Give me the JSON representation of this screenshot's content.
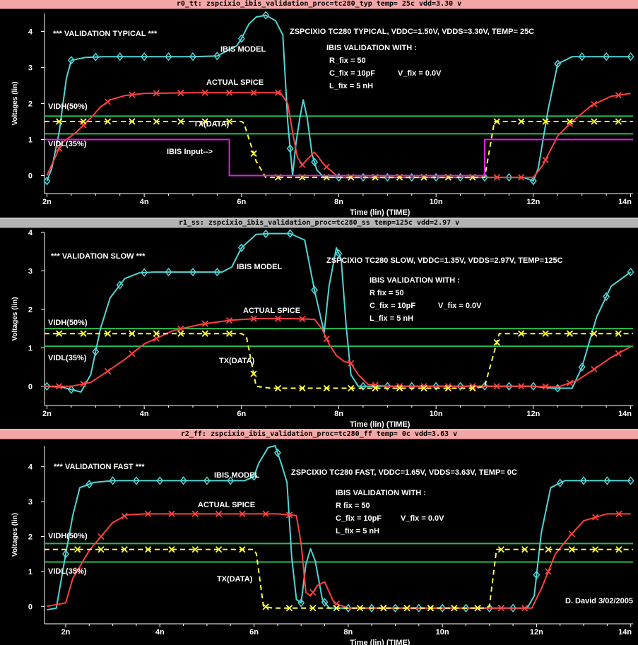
{
  "signature": "D. David 3/02/2005",
  "colors": {
    "bg": "#000000",
    "ibis": "#4fd6d6",
    "spice": "#ff4040",
    "txdata": "#ffff40",
    "thresh": "#22c055",
    "input": "#e020e0",
    "axis": "#ffffff",
    "title_a": "#f4a6a6",
    "title_b": "#b4b4b4"
  },
  "chart_data": [
    {
      "type": "line",
      "panel_title": "r0_tt: zspcixio_ibis_validation_proc=tc280_typ temp= 25c  vdd=3.30  v",
      "ylabel": "Voltages (lin)",
      "xlabel": "Time (lin) (TIME)",
      "xlim": [
        1.95,
        14.05
      ],
      "ylim": [
        -0.5,
        4.5
      ],
      "xticks": [
        2,
        4,
        6,
        8,
        10,
        12,
        14
      ],
      "xtick_labels": [
        "2n",
        "4n",
        "6n",
        "8n",
        "10n",
        "12n",
        "14n"
      ],
      "yticks": [
        0,
        1,
        2,
        3,
        4
      ],
      "ytick_labels": [
        "0",
        "1",
        "2",
        "3",
        "4"
      ],
      "annotations": {
        "validation": "*** VALIDATION TYPICAL ***",
        "corner": "ZSPCIXIO TC280 TYPICAL, VDDC=1.50V, VDDS=3.30V, TEMP= 25C",
        "ibis_header": "IBIS VALIDATION WITH :",
        "r_fix": "R_fix = 50",
        "c_fix": "C_fix = 10pF",
        "v_fix": "V_fix = 0.0V",
        "l_fix": "L_fix = 5 nH",
        "ibis_model": "IBIS MODEL",
        "actual_spice": "ACTUAL SPICE",
        "tx_data": "TX(DATA)",
        "vidh": "VIDH(50%)",
        "vidl": "VIDL(35%)",
        "ibis_input": "IBIS Input-->"
      },
      "thresholds": {
        "vidh": 1.65,
        "vidl": 1.16
      },
      "series": [
        {
          "name": "IBIS MODEL",
          "x": [
            2.0,
            2.1,
            2.25,
            2.4,
            2.5,
            2.8,
            3.2,
            3.6,
            4.0,
            5.0,
            5.5,
            5.9,
            6.0,
            6.15,
            6.3,
            6.5,
            6.7,
            6.85,
            6.95,
            7.05,
            7.12,
            7.2,
            7.27,
            7.35,
            7.45,
            7.55,
            7.7,
            8.0,
            9.0,
            10.0,
            11.0,
            11.8,
            12.0,
            12.1,
            12.3,
            12.5,
            12.8,
            13.5,
            14.0
          ],
          "y": [
            -0.15,
            0.2,
            1.2,
            2.7,
            3.2,
            3.28,
            3.3,
            3.3,
            3.3,
            3.3,
            3.32,
            3.6,
            3.8,
            4.2,
            4.4,
            4.45,
            4.3,
            3.9,
            1.5,
            0.0,
            0.9,
            1.6,
            2.1,
            1.6,
            0.6,
            0.15,
            -0.05,
            -0.05,
            -0.05,
            -0.05,
            -0.05,
            -0.05,
            -0.15,
            0.2,
            1.8,
            3.1,
            3.3,
            3.3,
            3.3
          ]
        },
        {
          "name": "ACTUAL SPICE",
          "x": [
            2.0,
            2.3,
            2.6,
            2.9,
            3.1,
            3.3,
            3.6,
            4.0,
            5.0,
            6.0,
            6.8,
            6.95,
            7.05,
            7.15,
            7.25,
            7.35,
            7.5,
            7.7,
            8.0,
            9.0,
            10.0,
            11.0,
            12.0,
            12.2,
            12.5,
            12.8,
            13.2,
            13.6,
            14.0
          ],
          "y": [
            0.0,
            0.9,
            1.2,
            1.6,
            1.9,
            2.1,
            2.22,
            2.28,
            2.3,
            2.3,
            2.3,
            2.0,
            1.2,
            0.5,
            0.3,
            0.45,
            0.65,
            0.3,
            -0.05,
            -0.05,
            -0.05,
            -0.05,
            -0.05,
            0.3,
            1.1,
            1.5,
            1.95,
            2.2,
            2.28
          ]
        },
        {
          "name": "TX(DATA)",
          "x": [
            1.95,
            6.0,
            6.05,
            6.3,
            6.5,
            6.7,
            11.0,
            11.2,
            11.4,
            14.05
          ],
          "y": [
            1.5,
            1.5,
            1.45,
            0.4,
            -0.05,
            -0.05,
            -0.05,
            1.5,
            1.5,
            1.5
          ]
        },
        {
          "name": "IBIS Input",
          "x": [
            1.95,
            5.75,
            5.75,
            11.0,
            11.0,
            14.05
          ],
          "y": [
            1.0,
            1.0,
            0.0,
            0.0,
            1.0,
            1.0
          ]
        }
      ]
    },
    {
      "type": "line",
      "panel_title": "r1_ss: zspcixio_ibis_validation_proc=tc280_ss temp=125c  vdd=2.97  v",
      "ylabel": "Voltages (lin)",
      "xlabel": "Time (lin) (TIME)",
      "xlim": [
        1.95,
        14.05
      ],
      "ylim": [
        -0.5,
        4.0
      ],
      "xticks": [
        2,
        4,
        6,
        8,
        10,
        12,
        14
      ],
      "xtick_labels": [
        "2n",
        "4n",
        "6n",
        "8n",
        "10n",
        "12n",
        "14n"
      ],
      "yticks": [
        0,
        1,
        2,
        3,
        4
      ],
      "ytick_labels": [
        "0",
        "1",
        "2",
        "3",
        "4"
      ],
      "annotations": {
        "validation": "*** VALIDATION SLOW ***",
        "corner": "ZSPCIXIO TC280 SLOW, VDDC=1.35V, VDDS=2.97V, TEMP=125C",
        "ibis_header": "IBIS VALIDATION WITH :",
        "r_fix": "R  fix = 50",
        "c_fix": "C_fix = 10pF",
        "v_fix": "V_fix = 0.0V",
        "l_fix": "L_fix = 5 nH",
        "ibis_model": "IBIS MODEL",
        "actual_spice": "ACTUAL SPICE",
        "tx_data": "TX(DATA)",
        "vidh": "VIDH(50%)",
        "vidl": "VIDL(35%)"
      },
      "thresholds": {
        "vidh": 1.5,
        "vidl": 1.04
      },
      "series": [
        {
          "name": "IBIS MODEL",
          "x": [
            1.95,
            2.3,
            2.7,
            2.9,
            3.1,
            3.3,
            3.6,
            3.9,
            4.2,
            5.0,
            5.6,
            5.8,
            6.0,
            6.3,
            6.6,
            7.0,
            7.3,
            7.5,
            7.7,
            7.8,
            7.95,
            8.05,
            8.15,
            8.25,
            8.4,
            8.6,
            9.0,
            10.0,
            11.0,
            12.0,
            12.4,
            12.8,
            13.0,
            13.3,
            13.6,
            14.0
          ],
          "y": [
            0.0,
            -0.02,
            -0.15,
            0.3,
            1.5,
            2.3,
            2.8,
            2.95,
            2.97,
            2.97,
            2.97,
            3.1,
            3.6,
            3.95,
            3.97,
            3.97,
            3.8,
            2.5,
            1.4,
            2.6,
            3.6,
            3.3,
            1.6,
            0.3,
            0.0,
            0.0,
            0.0,
            0.0,
            0.0,
            0.0,
            -0.05,
            -0.05,
            0.5,
            1.8,
            2.6,
            2.97
          ]
        },
        {
          "name": "ACTUAL SPICE",
          "x": [
            1.95,
            2.5,
            2.9,
            3.2,
            3.6,
            4.0,
            4.6,
            5.2,
            5.8,
            6.3,
            7.0,
            7.5,
            7.65,
            7.8,
            7.95,
            8.1,
            8.25,
            8.4,
            8.6,
            9.0,
            10.0,
            11.0,
            12.0,
            12.5,
            12.9,
            13.2,
            13.6,
            14.0
          ],
          "y": [
            0.0,
            0.0,
            0.1,
            0.35,
            0.7,
            1.1,
            1.45,
            1.62,
            1.72,
            1.76,
            1.76,
            1.74,
            1.5,
            1.1,
            0.8,
            0.65,
            0.6,
            0.3,
            0.05,
            0.0,
            0.0,
            0.0,
            0.0,
            -0.02,
            0.15,
            0.4,
            0.75,
            1.03
          ]
        },
        {
          "name": "TX(DATA)",
          "x": [
            1.95,
            6.0,
            6.1,
            6.3,
            6.6,
            10.8,
            11.0,
            11.3,
            11.5,
            14.05
          ],
          "y": [
            1.37,
            1.37,
            1.3,
            0.0,
            -0.05,
            -0.05,
            0.0,
            1.37,
            1.37,
            1.37
          ]
        }
      ]
    },
    {
      "type": "line",
      "panel_title": "r2_ff: zspcixio_ibis_validation_proc=tc280_ff temp= 0c  vdd=3.63  v",
      "ylabel": "Voltages (lin)",
      "xlabel": "Time (lin) (TIME)",
      "xlim": [
        1.55,
        14.05
      ],
      "ylim": [
        -0.5,
        4.6
      ],
      "xticks": [
        2,
        4,
        6,
        8,
        10,
        12,
        14
      ],
      "xtick_labels": [
        "2n",
        "4n",
        "6n",
        "8n",
        "10n",
        "12n",
        "14n"
      ],
      "yticks": [
        0,
        1,
        2,
        3,
        4
      ],
      "ytick_labels": [
        "0",
        "1",
        "2",
        "3",
        "4"
      ],
      "annotations": {
        "validation": "*** VALIDATION FAST ***",
        "corner": "ZSPCIXIO TC280 FAST, VDDC=1.65V, VDDS=3.63V, TEMP= 0C",
        "ibis_header": "IBIS VALIDATION WITH :",
        "r_fix": "R  fix = 50",
        "c_fix": "C_fix = 10pF",
        "v_fix": "V_fix = 0.0V",
        "l_fix": "L_fix = 5 nH",
        "ibis_model": "IBIS MODEL",
        "actual_spice": "ACTUAL SPICE",
        "tx_data": "TX(DATA)",
        "vidh": "VIDH(50%)",
        "vidl": "VIDL(35%)"
      },
      "thresholds": {
        "vidh": 1.8,
        "vidl": 1.27
      },
      "series": [
        {
          "name": "IBIS MODEL",
          "x": [
            1.6,
            1.8,
            2.0,
            2.15,
            2.3,
            2.6,
            3.0,
            3.5,
            4.0,
            5.0,
            5.8,
            6.0,
            6.1,
            6.3,
            6.45,
            6.6,
            6.7,
            6.8,
            6.9,
            7.0,
            7.1,
            7.2,
            7.3,
            7.45,
            7.6,
            8.0,
            9.0,
            10.0,
            11.0,
            11.8,
            11.95,
            12.1,
            12.3,
            12.6,
            13.0,
            14.0
          ],
          "y": [
            -0.1,
            -0.05,
            1.5,
            2.6,
            3.4,
            3.55,
            3.6,
            3.6,
            3.6,
            3.6,
            3.6,
            3.72,
            4.1,
            4.55,
            4.6,
            4.0,
            3.55,
            1.4,
            0.2,
            0.1,
            1.2,
            1.65,
            1.3,
            0.2,
            -0.05,
            -0.05,
            -0.05,
            -0.05,
            -0.05,
            -0.05,
            0.3,
            2.1,
            3.4,
            3.6,
            3.6,
            3.6
          ]
        },
        {
          "name": "ACTUAL SPICE",
          "x": [
            1.6,
            2.0,
            2.15,
            2.5,
            3.0,
            3.3,
            3.7,
            4.5,
            5.5,
            6.5,
            6.9,
            7.0,
            7.1,
            7.2,
            7.35,
            7.5,
            7.7,
            8.0,
            9.0,
            10.0,
            11.0,
            11.9,
            12.1,
            12.4,
            12.7,
            13.0,
            13.5,
            14.0
          ],
          "y": [
            0.0,
            0.1,
            0.8,
            1.6,
            2.4,
            2.62,
            2.65,
            2.65,
            2.65,
            2.65,
            2.6,
            1.8,
            0.4,
            0.3,
            0.6,
            0.7,
            0.1,
            -0.05,
            -0.05,
            -0.05,
            -0.05,
            -0.05,
            0.5,
            1.5,
            2.0,
            2.45,
            2.65,
            2.65
          ]
        },
        {
          "name": "TX(DATA)",
          "x": [
            1.55,
            6.0,
            6.05,
            6.2,
            6.4,
            10.9,
            11.0,
            11.15,
            11.3,
            14.05
          ],
          "y": [
            1.63,
            1.63,
            1.5,
            0.0,
            -0.05,
            -0.05,
            0.0,
            1.63,
            1.63,
            1.63
          ]
        }
      ]
    }
  ]
}
